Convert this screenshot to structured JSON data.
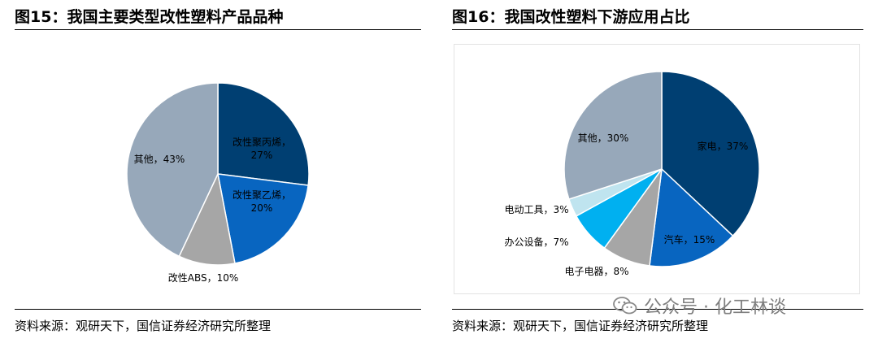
{
  "figures": [
    {
      "title": "图15：我国主要类型改性塑料产品品种",
      "source": "资料来源：观研天下，国信证券经济研究所整理"
    },
    {
      "title": "图16：我国改性塑料下游应用占比",
      "source": "资料来源：观研天下，国信证券经济研究所整理"
    }
  ],
  "watermark": {
    "text": "公众号 · 化工林谈",
    "icon": "wechat-icon"
  },
  "chart_data": [
    {
      "type": "pie",
      "title": "",
      "start": "12 o'clock, clockwise",
      "slices": [
        {
          "label": "改性聚丙烯，27%",
          "value": 27,
          "color": "#003f72",
          "label_color": "#000000"
        },
        {
          "label": "改性聚乙烯，20%",
          "value": 20,
          "color": "#0865c0",
          "label_color": "#000000"
        },
        {
          "label": "改性ABS，10%",
          "value": 10,
          "color": "#a6a6a6",
          "label_color": "#000000"
        },
        {
          "label": "其他，43%",
          "value": 43,
          "color": "#97a8ba",
          "label_color": "#000000"
        }
      ]
    },
    {
      "type": "pie",
      "title": "",
      "start": "12 o'clock, clockwise",
      "slices": [
        {
          "label": "家电，37%",
          "value": 37,
          "color": "#003f72",
          "label_color": "#000000"
        },
        {
          "label": "汽车，15%",
          "value": 15,
          "color": "#0865c0",
          "label_color": "#000000"
        },
        {
          "label": "电子电器，8%",
          "value": 8,
          "color": "#a6a6a6",
          "label_color": "#000000"
        },
        {
          "label": "办公设备，7%",
          "value": 7,
          "color": "#00b0f0",
          "label_color": "#000000"
        },
        {
          "label": "电动工具，3%",
          "value": 3,
          "color": "#bfe4ef",
          "label_color": "#000000"
        },
        {
          "label": "其他，30%",
          "value": 30,
          "color": "#97a8ba",
          "label_color": "#000000"
        }
      ]
    }
  ]
}
